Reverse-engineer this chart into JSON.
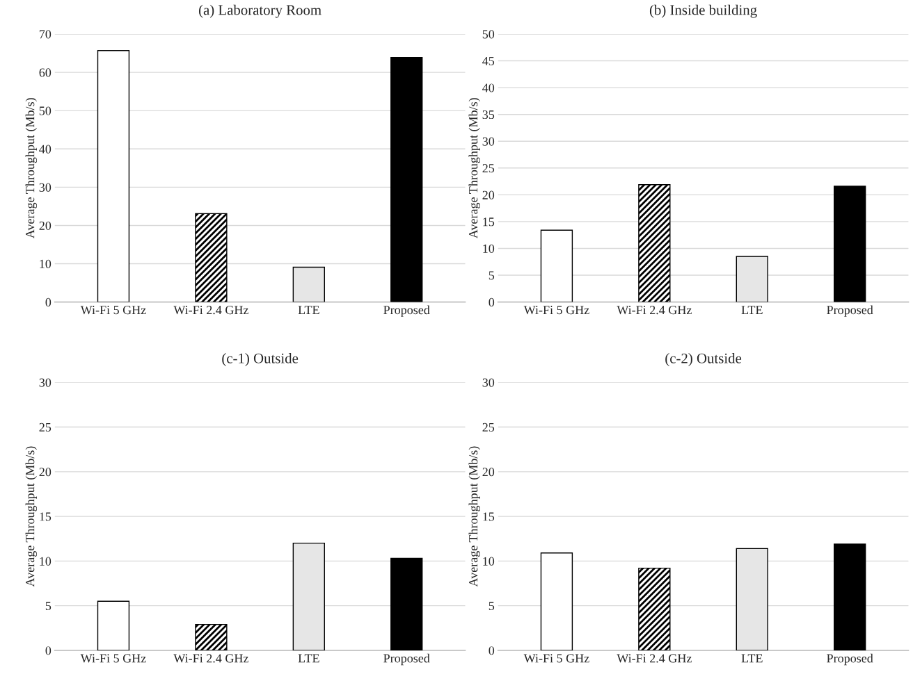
{
  "chart_data": [
    {
      "type": "bar",
      "title": "(a) Laboratory Room",
      "ylabel": "Average Throughput (Mb/s)",
      "categories": [
        "Wi-Fi 5 GHz",
        "Wi-Fi 2.4 GHz",
        "LTE",
        "Proposed"
      ],
      "values": [
        65.7,
        23.1,
        9.1,
        63.9
      ],
      "colors": [
        "#ffffff",
        "#000000",
        "#e6e6e6",
        "#000000"
      ],
      "ylim": [
        0,
        70
      ],
      "yticks": [
        0,
        10,
        20,
        30,
        40,
        50,
        60,
        70
      ],
      "grid": "y"
    },
    {
      "type": "bar",
      "title": "(b) Inside building",
      "ylabel": "Average Throughput (Mb/s)",
      "categories": [
        "Wi-Fi 5 GHz",
        "Wi-Fi 2.4 GHz",
        "LTE",
        "Proposed"
      ],
      "values": [
        13.4,
        21.9,
        8.5,
        21.6
      ],
      "colors": [
        "#ffffff",
        "#000000",
        "#e6e6e6",
        "#000000"
      ],
      "ylim": [
        0,
        50
      ],
      "yticks": [
        0,
        5,
        10,
        15,
        20,
        25,
        30,
        35,
        40,
        45,
        50
      ],
      "grid": "y"
    },
    {
      "type": "bar",
      "title": "(c-1) Outside",
      "ylabel": "Average Throughput (Mb/s)",
      "categories": [
        "Wi-Fi 5 GHz",
        "Wi-Fi 2.4 GHz",
        "LTE",
        "Proposed"
      ],
      "values": [
        5.5,
        2.9,
        12.0,
        10.3
      ],
      "colors": [
        "#ffffff",
        "#000000",
        "#e6e6e6",
        "#000000"
      ],
      "ylim": [
        0,
        30
      ],
      "yticks": [
        0,
        5,
        10,
        15,
        20,
        25,
        30
      ],
      "grid": "y"
    },
    {
      "type": "bar",
      "title": "(c-2) Outside",
      "ylabel": "Average Throughput (Mb/s)",
      "categories": [
        "Wi-Fi 5 GHz",
        "Wi-Fi 2.4 GHz",
        "LTE",
        "Proposed"
      ],
      "values": [
        10.9,
        9.2,
        11.4,
        11.9
      ],
      "colors": [
        "#ffffff",
        "#000000",
        "#e6e6e6",
        "#000000"
      ],
      "ylim": [
        0,
        30
      ],
      "yticks": [
        0,
        5,
        10,
        15,
        20,
        25,
        30
      ],
      "grid": "y"
    }
  ]
}
